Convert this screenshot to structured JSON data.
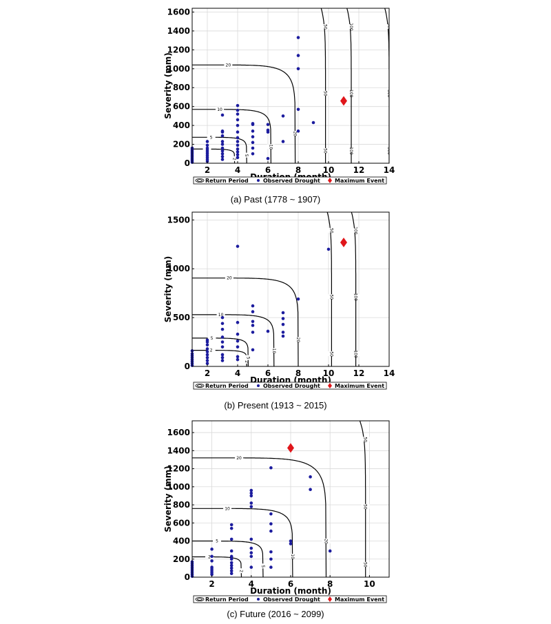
{
  "colors": {
    "observed": "#1c1c9e",
    "maximum": "#e0161b",
    "contour": "#000000",
    "grid": "#d9d9d9"
  },
  "chart_data": [
    {
      "type": "scatter",
      "caption": "(a) Past (1778 ~ 1907)",
      "xlabel": "Duration (month)",
      "ylabel": "Severity (mm)",
      "xlim": [
        1,
        14
      ],
      "ylim": [
        0,
        1640
      ],
      "xticks": [
        2,
        4,
        6,
        8,
        10,
        12,
        14
      ],
      "yticks": [
        0,
        200,
        400,
        600,
        800,
        1000,
        1200,
        1400,
        1600
      ],
      "grid": true,
      "legend": {
        "placement": "bottom",
        "items": [
          "Return Period",
          "Observed Drought",
          "Maximum Event"
        ]
      },
      "contours": [
        {
          "label": "2",
          "d_asym": 3.8,
          "s_asym": 150
        },
        {
          "label": "5",
          "d_asym": 4.6,
          "s_asym": 275
        },
        {
          "label": "10",
          "d_asym": 6.2,
          "s_asym": 570
        },
        {
          "label": "20",
          "d_asym": 7.8,
          "s_asym": 1040
        },
        {
          "label": "50",
          "d_asym": 9.8,
          "s_asym": 99999
        },
        {
          "label": "100",
          "d_asym": 11.5,
          "s_asym": 99999
        },
        {
          "label": "300",
          "d_asym": 14.0,
          "s_asym": 99999
        }
      ],
      "observed": [
        [
          1,
          10
        ],
        [
          1,
          25
        ],
        [
          1,
          40
        ],
        [
          1,
          55
        ],
        [
          1,
          70
        ],
        [
          1,
          85
        ],
        [
          1,
          100
        ],
        [
          1,
          115
        ],
        [
          1,
          130
        ],
        [
          1,
          145
        ],
        [
          1,
          160
        ],
        [
          2,
          20
        ],
        [
          2,
          40
        ],
        [
          2,
          60
        ],
        [
          2,
          80
        ],
        [
          2,
          100
        ],
        [
          2,
          120
        ],
        [
          2,
          140
        ],
        [
          2,
          160
        ],
        [
          2,
          190
        ],
        [
          2,
          230
        ],
        [
          3,
          40
        ],
        [
          3,
          70
        ],
        [
          3,
          100
        ],
        [
          3,
          130
        ],
        [
          3,
          160
        ],
        [
          3,
          200
        ],
        [
          3,
          230
        ],
        [
          3,
          290
        ],
        [
          3,
          330
        ],
        [
          3,
          340
        ],
        [
          3,
          510
        ],
        [
          4,
          60
        ],
        [
          4,
          90
        ],
        [
          4,
          120
        ],
        [
          4,
          150
        ],
        [
          4,
          190
        ],
        [
          4,
          230
        ],
        [
          4,
          270
        ],
        [
          4,
          330
        ],
        [
          4,
          400
        ],
        [
          4,
          460
        ],
        [
          4,
          520
        ],
        [
          4,
          560
        ],
        [
          4,
          610
        ],
        [
          5,
          100
        ],
        [
          5,
          160
        ],
        [
          5,
          220
        ],
        [
          5,
          280
        ],
        [
          5,
          340
        ],
        [
          5,
          410
        ],
        [
          5,
          420
        ],
        [
          6,
          50
        ],
        [
          6,
          330
        ],
        [
          6,
          350
        ],
        [
          6,
          410
        ],
        [
          7,
          230
        ],
        [
          7,
          500
        ],
        [
          8,
          340
        ],
        [
          8,
          570
        ],
        [
          8,
          1000
        ],
        [
          8,
          1140
        ],
        [
          8,
          1330
        ],
        [
          9,
          430
        ]
      ],
      "maximum": [
        [
          11,
          660
        ]
      ]
    },
    {
      "type": "scatter",
      "caption": "(b) Present (1913 ~ 2015)",
      "xlabel": "Duration (month)",
      "ylabel": "Severity (mm)",
      "xlim": [
        1,
        14
      ],
      "ylim": [
        0,
        1580
      ],
      "xticks": [
        2,
        4,
        6,
        8,
        10,
        12,
        14
      ],
      "yticks": [
        0,
        500,
        1000,
        1500
      ],
      "grid": true,
      "legend": {
        "placement": "bottom",
        "items": [
          "Return Period",
          "Observed Drought",
          "Maximum Event"
        ]
      },
      "contours": [
        {
          "label": "2",
          "d_asym": 4.6,
          "s_asym": 165
        },
        {
          "label": "5",
          "d_asym": 4.7,
          "s_asym": 290
        },
        {
          "label": "10",
          "d_asym": 6.4,
          "s_asym": 530
        },
        {
          "label": "20",
          "d_asym": 8.0,
          "s_asym": 905
        },
        {
          "label": "50",
          "d_asym": 10.2,
          "s_asym": 99999
        },
        {
          "label": "100",
          "d_asym": 11.8,
          "s_asym": 99999
        }
      ],
      "observed": [
        [
          1,
          10
        ],
        [
          1,
          30
        ],
        [
          1,
          50
        ],
        [
          1,
          70
        ],
        [
          1,
          90
        ],
        [
          1,
          110
        ],
        [
          1,
          130
        ],
        [
          1,
          160
        ],
        [
          2,
          30
        ],
        [
          2,
          60
        ],
        [
          2,
          90
        ],
        [
          2,
          120
        ],
        [
          2,
          150
        ],
        [
          2,
          180
        ],
        [
          2,
          220
        ],
        [
          2,
          250
        ],
        [
          2,
          270
        ],
        [
          3,
          60
        ],
        [
          3,
          90
        ],
        [
          3,
          120
        ],
        [
          3,
          200
        ],
        [
          3,
          250
        ],
        [
          3,
          300
        ],
        [
          3,
          380
        ],
        [
          3,
          440
        ],
        [
          3,
          500
        ],
        [
          4,
          70
        ],
        [
          4,
          100
        ],
        [
          4,
          200
        ],
        [
          4,
          260
        ],
        [
          4,
          330
        ],
        [
          4,
          450
        ],
        [
          4,
          1230
        ],
        [
          5,
          170
        ],
        [
          5,
          350
        ],
        [
          5,
          420
        ],
        [
          5,
          460
        ],
        [
          5,
          560
        ],
        [
          5,
          620
        ],
        [
          6,
          360
        ],
        [
          7,
          310
        ],
        [
          7,
          350
        ],
        [
          7,
          430
        ],
        [
          7,
          490
        ],
        [
          7,
          550
        ],
        [
          8,
          690
        ],
        [
          10,
          1200
        ]
      ],
      "maximum": [
        [
          11,
          1270
        ]
      ]
    },
    {
      "type": "scatter",
      "caption": "(c) Future (2016 ~ 2099)",
      "xlabel": "Duration (month)",
      "ylabel": "Severity (mm)",
      "xlim": [
        1,
        11
      ],
      "ylim": [
        0,
        1730
      ],
      "xticks": [
        2,
        4,
        6,
        8,
        10
      ],
      "yticks": [
        0,
        200,
        400,
        600,
        800,
        1000,
        1200,
        1400,
        1600
      ],
      "grid": true,
      "legend": {
        "placement": "bottom",
        "items": [
          "Return Period",
          "Observed Drought",
          "Maximum Event"
        ]
      },
      "contours": [
        {
          "label": "2",
          "d_asym": 3.5,
          "s_asym": 225
        },
        {
          "label": "5",
          "d_asym": 4.6,
          "s_asym": 400
        },
        {
          "label": "10",
          "d_asym": 6.1,
          "s_asym": 760
        },
        {
          "label": "20",
          "d_asym": 7.8,
          "s_asym": 1320
        },
        {
          "label": "50",
          "d_asym": 9.8,
          "s_asym": 99999
        }
      ],
      "observed": [
        [
          1,
          10
        ],
        [
          1,
          30
        ],
        [
          1,
          50
        ],
        [
          1,
          70
        ],
        [
          1,
          90
        ],
        [
          1,
          110
        ],
        [
          1,
          130
        ],
        [
          1,
          150
        ],
        [
          1,
          170
        ],
        [
          2,
          30
        ],
        [
          2,
          50
        ],
        [
          2,
          70
        ],
        [
          2,
          90
        ],
        [
          2,
          110
        ],
        [
          2,
          180
        ],
        [
          2,
          230
        ],
        [
          2,
          310
        ],
        [
          3,
          40
        ],
        [
          3,
          70
        ],
        [
          3,
          100
        ],
        [
          3,
          130
        ],
        [
          3,
          160
        ],
        [
          3,
          200
        ],
        [
          3,
          230
        ],
        [
          3,
          290
        ],
        [
          3,
          420
        ],
        [
          3,
          540
        ],
        [
          3,
          580
        ],
        [
          4,
          110
        ],
        [
          4,
          230
        ],
        [
          4,
          270
        ],
        [
          4,
          320
        ],
        [
          4,
          420
        ],
        [
          4,
          780
        ],
        [
          4,
          820
        ],
        [
          4,
          900
        ],
        [
          4,
          930
        ],
        [
          4,
          960
        ],
        [
          5,
          110
        ],
        [
          5,
          200
        ],
        [
          5,
          280
        ],
        [
          5,
          510
        ],
        [
          5,
          590
        ],
        [
          5,
          700
        ],
        [
          5,
          1210
        ],
        [
          6,
          370
        ],
        [
          6,
          400
        ],
        [
          7,
          970
        ],
        [
          7,
          1110
        ],
        [
          8,
          290
        ]
      ],
      "maximum": [
        [
          6,
          1430
        ]
      ]
    }
  ]
}
